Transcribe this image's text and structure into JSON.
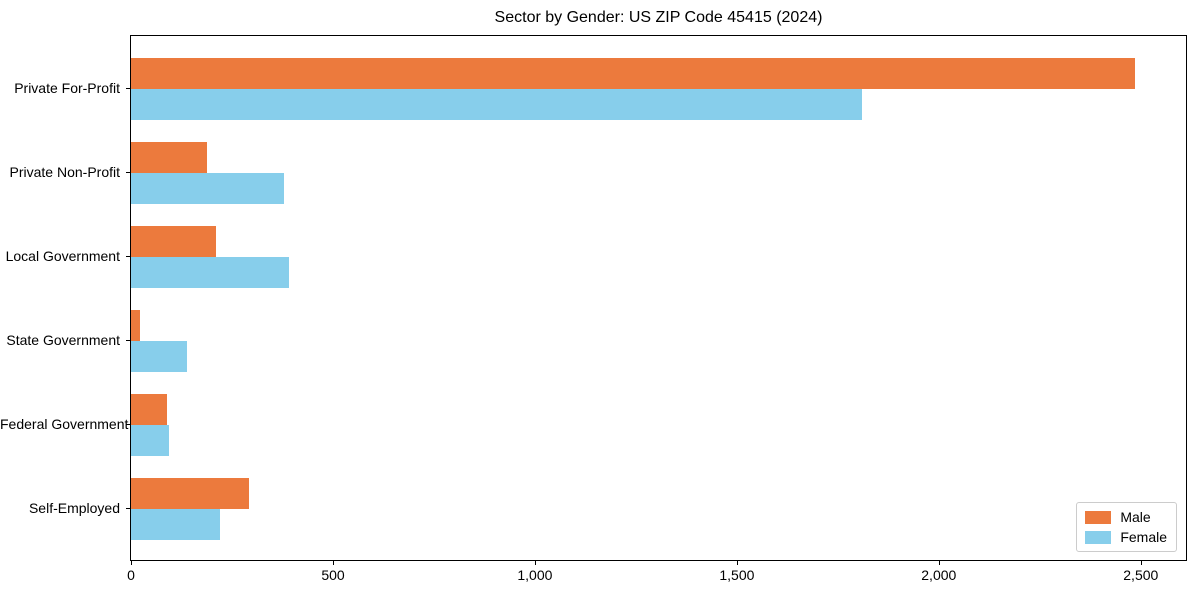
{
  "chart_data": {
    "type": "bar",
    "orientation": "horizontal",
    "title": "Sector by Gender: US ZIP Code 45415 (2024)",
    "categories": [
      "Private For-Profit",
      "Private Non-Profit",
      "Local Government",
      "State Government",
      "Federal Government",
      "Self-Employed"
    ],
    "series": [
      {
        "name": "Male",
        "color": "#ec7a3d",
        "values": [
          2485,
          187,
          210,
          22,
          88,
          293
        ]
      },
      {
        "name": "Female",
        "color": "#87ceeb",
        "values": [
          1810,
          378,
          392,
          138,
          93,
          220
        ]
      }
    ],
    "xlabel": "",
    "ylabel": "",
    "xlim": [
      0,
      2612
    ],
    "xticks": [
      0,
      500,
      1000,
      1500,
      2000,
      2500
    ],
    "xtick_labels": [
      "0",
      "500",
      "1,000",
      "1,500",
      "2,000",
      "2,500"
    ],
    "grid": false,
    "legend": {
      "position": "lower right",
      "entries": [
        "Male",
        "Female"
      ]
    }
  }
}
